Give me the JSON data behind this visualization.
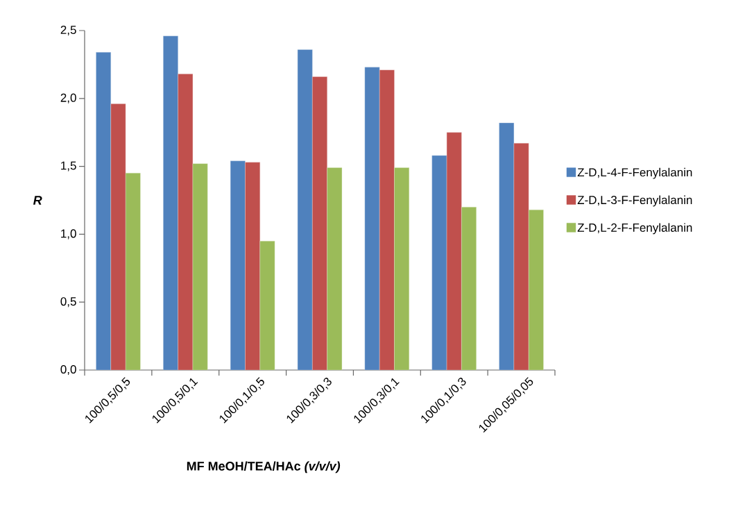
{
  "chart_data": {
    "type": "bar",
    "xlabel": "MF MeOH/TEA/HAc *(v/v/v)*",
    "ylabel": "R",
    "categories": [
      "100/0,5/0,5",
      "100/0,5/0,1",
      "100/0,1/0,5",
      "100/0,3/0,3",
      "100/0,3/0,1",
      "100/0,1/0,3",
      "100/0,05/0,05"
    ],
    "series": [
      {
        "name": "Z-D,L-4-F-Fenylalanin",
        "color": "#4f81bd",
        "values": [
          2.34,
          2.46,
          1.54,
          2.36,
          2.23,
          1.58,
          1.82
        ]
      },
      {
        "name": "Z-D,L-3-F-Fenylalanin",
        "color": "#c0504d",
        "values": [
          1.96,
          2.18,
          1.53,
          2.16,
          2.21,
          1.75,
          1.67
        ]
      },
      {
        "name": "Z-D,L-2-F-Fenylalanin",
        "color": "#9bbb59",
        "values": [
          1.45,
          1.52,
          0.95,
          1.49,
          1.49,
          1.2,
          1.18
        ]
      }
    ],
    "ylim": [
      0,
      2.5
    ],
    "yticks": [
      {
        "value": 0,
        "label": "0,0"
      },
      {
        "value": 0.5,
        "label": "0,5"
      },
      {
        "value": 1,
        "label": "1,0"
      },
      {
        "value": 1.5,
        "label": "1,5"
      },
      {
        "value": 2,
        "label": "2,0"
      },
      {
        "value": 2.5,
        "label": "2,5"
      }
    ],
    "grid": false,
    "legend": "right"
  }
}
